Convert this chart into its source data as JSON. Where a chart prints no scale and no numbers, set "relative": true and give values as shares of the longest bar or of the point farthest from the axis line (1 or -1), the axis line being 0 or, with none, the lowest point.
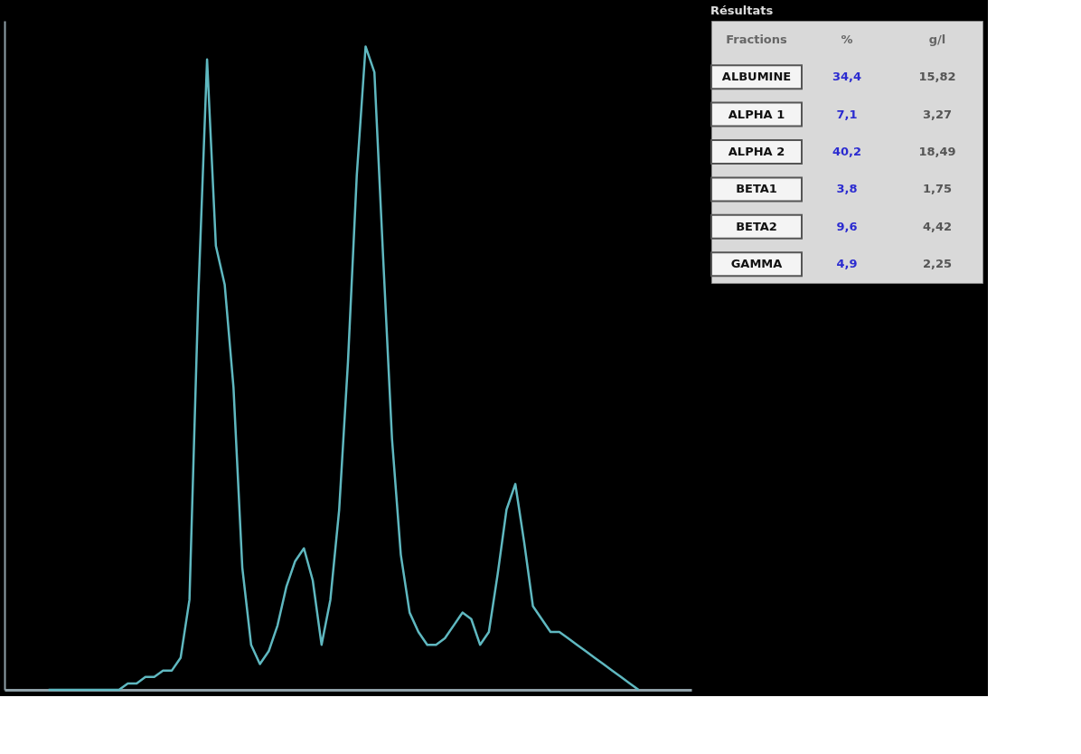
{
  "chart_data": [
    {
      "type": "line",
      "relative": true,
      "tick_labels": false,
      "grid": false,
      "marker": "none",
      "line_style": "solid",
      "categories": [
        null,
        null,
        null,
        null,
        null,
        null,
        null,
        null,
        null,
        null,
        null,
        null,
        null,
        null,
        null,
        null,
        null,
        null,
        null,
        null,
        null,
        null,
        null,
        null,
        null,
        null,
        null,
        null,
        null,
        null,
        null,
        null,
        null,
        null,
        null,
        null,
        null,
        null,
        null,
        null,
        null,
        null,
        null,
        null,
        null,
        null,
        null,
        null,
        null,
        null,
        null,
        null,
        null,
        null,
        null,
        null,
        null,
        null,
        null,
        null,
        null,
        null,
        null,
        null,
        null,
        null,
        null,
        null
      ],
      "series": [
        {
          "color": "#5fb8c0",
          "values": [
            0.0,
            0.0,
            0.0,
            0.0,
            0.0,
            0.0,
            0.0,
            0.0,
            0.0,
            0.01,
            0.01,
            0.02,
            0.02,
            0.03,
            0.03,
            0.05,
            0.14,
            0.61,
            0.98,
            0.69,
            0.63,
            0.47,
            0.19,
            0.07,
            0.04,
            0.06,
            0.1,
            0.16,
            0.2,
            0.22,
            0.17,
            0.07,
            0.14,
            0.28,
            0.51,
            0.8,
            1.0,
            0.96,
            0.67,
            0.39,
            0.21,
            0.12,
            0.09,
            0.07,
            0.07,
            0.08,
            0.1,
            0.12,
            0.11,
            0.07,
            0.09,
            0.18,
            0.28,
            0.32,
            0.23,
            0.13,
            0.11,
            0.09,
            0.09,
            0.08,
            0.07,
            0.06,
            0.05,
            0.04,
            0.03,
            0.02,
            0.01,
            0.0
          ]
        }
      ]
    },
    {
      "type": "other",
      "title": "Résultats",
      "annotations": [
        "Fractions"
      ],
      "categories": [
        "ALBUMINE",
        "ALPHA 1",
        "ALPHA 2",
        "BETA1",
        "BETA2",
        "GAMMA"
      ],
      "series": [
        {
          "name": "%",
          "values": [
            34.4,
            7.1,
            40.2,
            3.8,
            9.6,
            4.9
          ],
          "value_labels": [
            "34,4",
            "7,1",
            "40,2",
            "3,8",
            "9,6",
            "4,9"
          ]
        },
        {
          "name": "g/l",
          "values": [
            15.82,
            3.27,
            18.49,
            1.75,
            4.42,
            2.25
          ],
          "value_labels": [
            "15,82",
            "3,27",
            "18,49",
            "1,75",
            "4,42",
            "2,25"
          ]
        }
      ]
    }
  ]
}
